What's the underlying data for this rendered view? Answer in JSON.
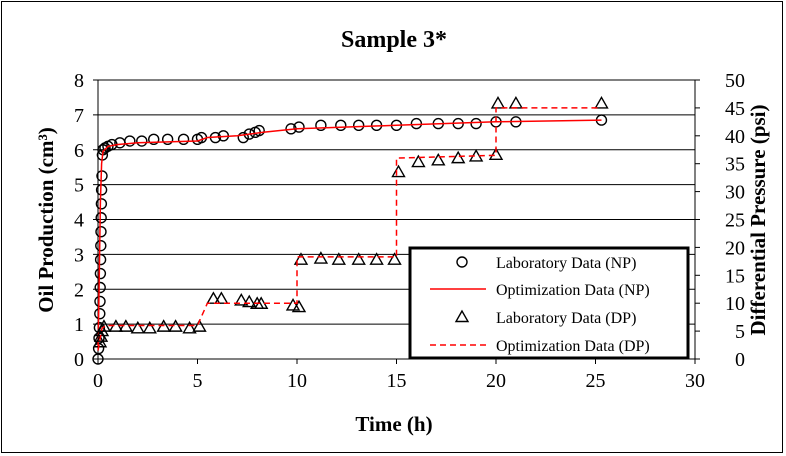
{
  "chart_data": {
    "type": "scatter",
    "title": "Sample 3*",
    "xlabel": "Time (h)",
    "ylabel": "Oil Production (cm³)",
    "ylabel_right": "Differential Pressure (psi)",
    "xlim": [
      0,
      30
    ],
    "ylim": [
      0,
      8
    ],
    "ylim_right": [
      0,
      50
    ],
    "x_ticks": [
      "0",
      "5",
      "10",
      "15",
      "20",
      "25",
      "30"
    ],
    "y_ticks": [
      "0",
      "1",
      "2",
      "3",
      "4",
      "5",
      "6",
      "7",
      "8"
    ],
    "y_right_ticks": [
      "0",
      "5",
      "10",
      "15",
      "20",
      "25",
      "30",
      "35",
      "40",
      "45",
      "50"
    ],
    "grid": "horizontal",
    "legend_position": "bottom-right",
    "series": [
      {
        "name": "Laboratory Data (NP)",
        "axis": "left",
        "marker": "circle",
        "color": "#000000",
        "points": [
          [
            0,
            0
          ],
          [
            0.03,
            0.3
          ],
          [
            0.05,
            0.6
          ],
          [
            0.07,
            0.9
          ],
          [
            0.09,
            1.3
          ],
          [
            0.1,
            1.65
          ],
          [
            0.11,
            2.05
          ],
          [
            0.12,
            2.45
          ],
          [
            0.13,
            2.85
          ],
          [
            0.14,
            3.25
          ],
          [
            0.15,
            3.65
          ],
          [
            0.16,
            4.05
          ],
          [
            0.17,
            4.45
          ],
          [
            0.18,
            4.85
          ],
          [
            0.2,
            5.25
          ],
          [
            0.22,
            5.85
          ],
          [
            0.25,
            6.0
          ],
          [
            0.35,
            6.05
          ],
          [
            0.5,
            6.1
          ],
          [
            0.7,
            6.15
          ],
          [
            1.1,
            6.2
          ],
          [
            1.6,
            6.25
          ],
          [
            2.2,
            6.25
          ],
          [
            2.8,
            6.3
          ],
          [
            3.5,
            6.3
          ],
          [
            4.3,
            6.3
          ],
          [
            5.0,
            6.3
          ],
          [
            5.2,
            6.35
          ],
          [
            5.9,
            6.35
          ],
          [
            6.3,
            6.4
          ],
          [
            7.3,
            6.35
          ],
          [
            7.6,
            6.45
          ],
          [
            7.9,
            6.5
          ],
          [
            8.1,
            6.55
          ],
          [
            9.7,
            6.6
          ],
          [
            10.1,
            6.65
          ],
          [
            11.2,
            6.7
          ],
          [
            12.2,
            6.7
          ],
          [
            13.1,
            6.7
          ],
          [
            14.0,
            6.7
          ],
          [
            15.0,
            6.7
          ],
          [
            16.0,
            6.75
          ],
          [
            17.1,
            6.75
          ],
          [
            18.1,
            6.75
          ],
          [
            19.0,
            6.75
          ],
          [
            20.0,
            6.8
          ],
          [
            21.0,
            6.8
          ],
          [
            25.3,
            6.85
          ]
        ]
      },
      {
        "name": "Optimization Data (NP)",
        "axis": "left",
        "line": "solid",
        "color": "#ff0000",
        "points": [
          [
            0,
            0.3
          ],
          [
            0.04,
            1.5
          ],
          [
            0.08,
            3.0
          ],
          [
            0.12,
            4.5
          ],
          [
            0.18,
            5.6
          ],
          [
            0.25,
            5.95
          ],
          [
            0.5,
            6.1
          ],
          [
            1.0,
            6.15
          ],
          [
            2.0,
            6.2
          ],
          [
            5.0,
            6.25
          ],
          [
            5.5,
            6.35
          ],
          [
            7.0,
            6.4
          ],
          [
            8.3,
            6.5
          ],
          [
            10.0,
            6.6
          ],
          [
            15.0,
            6.7
          ],
          [
            20.0,
            6.8
          ],
          [
            25.3,
            6.85
          ]
        ]
      },
      {
        "name": "Laboratory Data (DP)",
        "axis": "right",
        "marker": "triangle",
        "color": "#000000",
        "points": [
          [
            0.1,
            3.0
          ],
          [
            0.15,
            4.0
          ],
          [
            0.2,
            5.0
          ],
          [
            0.3,
            5.8
          ],
          [
            0.9,
            5.8
          ],
          [
            1.4,
            5.8
          ],
          [
            2.0,
            5.5
          ],
          [
            2.6,
            5.5
          ],
          [
            3.3,
            5.8
          ],
          [
            3.9,
            5.8
          ],
          [
            4.6,
            5.5
          ],
          [
            5.1,
            5.8
          ],
          [
            5.8,
            10.8
          ],
          [
            6.2,
            10.8
          ],
          [
            7.2,
            10.5
          ],
          [
            7.6,
            10.2
          ],
          [
            8.0,
            9.9
          ],
          [
            8.2,
            9.9
          ],
          [
            9.8,
            9.6
          ],
          [
            10.1,
            9.3
          ],
          [
            10.2,
            17.8
          ],
          [
            11.2,
            18.0
          ],
          [
            12.1,
            17.8
          ],
          [
            13.1,
            17.8
          ],
          [
            14.0,
            17.8
          ],
          [
            14.9,
            17.8
          ],
          [
            15.1,
            33.5
          ],
          [
            16.1,
            35.3
          ],
          [
            17.1,
            35.6
          ],
          [
            18.1,
            36.0
          ],
          [
            19.0,
            36.3
          ],
          [
            20.0,
            36.6
          ],
          [
            20.1,
            45.8
          ],
          [
            21.0,
            45.8
          ],
          [
            25.3,
            45.8
          ]
        ]
      },
      {
        "name": "Optimization Data (DP)",
        "axis": "right",
        "line": "dashed",
        "color": "#ff0000",
        "points": [
          [
            0,
            1.5
          ],
          [
            0.1,
            3.5
          ],
          [
            0.2,
            5.5
          ],
          [
            0.4,
            6.0
          ],
          [
            5.0,
            6.0
          ],
          [
            5.5,
            10.0
          ],
          [
            10.0,
            10.0
          ],
          [
            10.0,
            18.3
          ],
          [
            15.0,
            18.3
          ],
          [
            15.0,
            36.0
          ],
          [
            20.0,
            36.5
          ],
          [
            20.0,
            45.0
          ],
          [
            25.3,
            45.0
          ]
        ]
      }
    ]
  }
}
